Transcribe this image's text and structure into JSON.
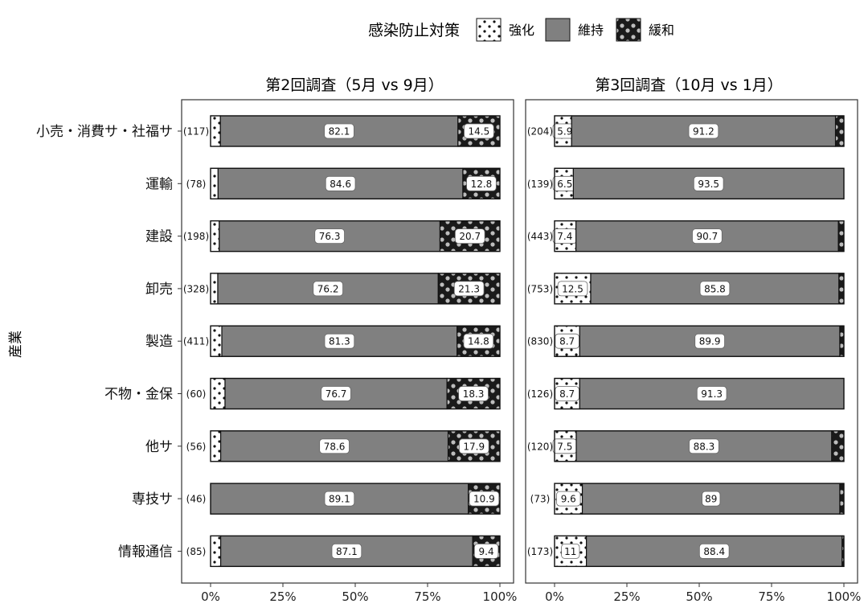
{
  "legend": {
    "title": "感染防止対策",
    "items": [
      {
        "label": "強化",
        "pattern": "dots-on-white"
      },
      {
        "label": "維持",
        "pattern": "solid-gray"
      },
      {
        "label": "緩和",
        "pattern": "dots-on-black"
      }
    ],
    "placement": "top"
  },
  "y_axis_label": "産業",
  "colors": {
    "strengthen": "#ffffff",
    "maintain": "#808080",
    "relax": "#1a1a1a",
    "border": "#111111",
    "frame": "#333333"
  },
  "chart_data": [
    {
      "type": "bar",
      "orientation": "horizontal",
      "stacked": "percent",
      "title": "第2回調査（5月 vs 9月）",
      "xlim": [
        0,
        100
      ],
      "x_ticks": [
        "0%",
        "25%",
        "50%",
        "75%",
        "100%"
      ],
      "grid": false,
      "categories": [
        "小売・消費サ・社福サ",
        "運輸",
        "建設",
        "卸売",
        "製造",
        "不物・金保",
        "他サ",
        "専技サ",
        "情報通信"
      ],
      "counts": [
        "(117)",
        "(78)",
        "(198)",
        "(328)",
        "(411)",
        "(60)",
        "(56)",
        "(46)",
        "(85)"
      ],
      "series": [
        {
          "name": "強化",
          "values": [
            3.4,
            2.6,
            3.0,
            2.5,
            3.9,
            5.0,
            3.5,
            0,
            3.5
          ],
          "labels": [
            "",
            "",
            "",
            "",
            "",
            "",
            "",
            "",
            ""
          ]
        },
        {
          "name": "維持",
          "values": [
            82.1,
            84.6,
            76.3,
            76.2,
            81.3,
            76.7,
            78.6,
            89.1,
            87.1
          ],
          "labels": [
            "82.1",
            "84.6",
            "76.3",
            "76.2",
            "81.3",
            "76.7",
            "78.6",
            "89.1",
            "87.1"
          ]
        },
        {
          "name": "緩和",
          "values": [
            14.5,
            12.8,
            20.7,
            21.3,
            14.8,
            18.3,
            17.9,
            10.9,
            9.4
          ],
          "labels": [
            "14.5",
            "12.8",
            "20.7",
            "21.3",
            "14.8",
            "18.3",
            "17.9",
            "10.9",
            "9.4"
          ]
        }
      ]
    },
    {
      "type": "bar",
      "orientation": "horizontal",
      "stacked": "percent",
      "title": "第3回調査（10月 vs 1月）",
      "xlim": [
        0,
        100
      ],
      "x_ticks": [
        "0%",
        "25%",
        "50%",
        "75%",
        "100%"
      ],
      "grid": false,
      "categories": [
        "小売・消費サ・社福サ",
        "運輸",
        "建設",
        "卸売",
        "製造",
        "不物・金保",
        "他サ",
        "専技サ",
        "情報通信"
      ],
      "counts": [
        "(204)",
        "(139)",
        "(443)",
        "(753)",
        "(830)",
        "(126)",
        "(120)",
        "(73)",
        "(173)"
      ],
      "series": [
        {
          "name": "強化",
          "values": [
            5.9,
            6.5,
            7.4,
            12.5,
            8.7,
            8.7,
            7.5,
            9.6,
            11
          ],
          "labels": [
            "5.9",
            "6.5",
            "7.4",
            "12.5",
            "8.7",
            "8.7",
            "7.5",
            "9.6",
            "11"
          ]
        },
        {
          "name": "維持",
          "values": [
            91.2,
            93.5,
            90.7,
            85.8,
            89.9,
            91.3,
            88.3,
            89,
            88.4
          ],
          "labels": [
            "91.2",
            "93.5",
            "90.7",
            "85.8",
            "89.9",
            "91.3",
            "88.3",
            "89",
            "88.4"
          ]
        },
        {
          "name": "緩和",
          "values": [
            2.9,
            0,
            1.9,
            1.7,
            1.4,
            0,
            4.2,
            1.4,
            0.6
          ],
          "labels": [
            "",
            "",
            "",
            "",
            "",
            "",
            "",
            "",
            ""
          ]
        }
      ]
    }
  ]
}
